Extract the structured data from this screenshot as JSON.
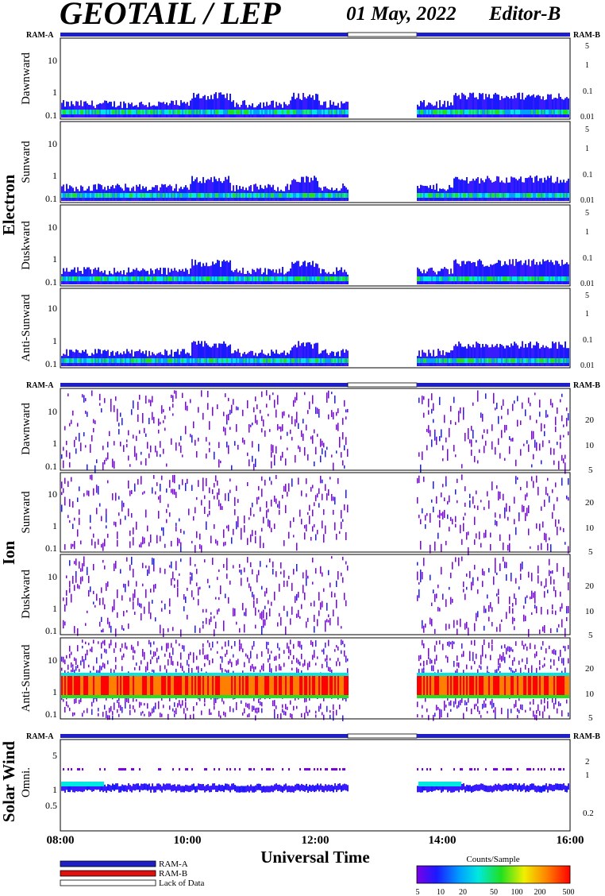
{
  "header": {
    "title": "GEOTAIL / LEP",
    "date": "01 May, 2022",
    "editor": "Editor-B"
  },
  "colors": {
    "ram_a": "#1f1fc8",
    "ram_b": "#e01010",
    "lack": "#ffffff",
    "frame": "#000000"
  },
  "groups": {
    "electron": "Electron",
    "ion": "Ion",
    "solar_wind": "Solar Wind"
  },
  "ram_labels": {
    "left": "RAM-A",
    "right": "RAM-B"
  },
  "xaxis": {
    "label": "Universal Time",
    "ticks": [
      "08:00",
      "10:00",
      "12:00",
      "14:00",
      "16:00"
    ]
  },
  "legend": {
    "items": [
      {
        "label": "RAM-A",
        "color": "#1f1fc8"
      },
      {
        "label": "RAM-B",
        "color": "#e01010"
      },
      {
        "label": "Lack of Data",
        "color": "#ffffff"
      }
    ]
  },
  "colorbar": {
    "title": "Counts/Sample",
    "ticks": [
      "5",
      "10",
      "20",
      "50",
      "100",
      "200",
      "500"
    ]
  },
  "chart_data": {
    "type": "heatmap",
    "x_range": [
      "08:00",
      "16:00"
    ],
    "data_gap": [
      "12:30",
      "13:35"
    ],
    "panels": [
      {
        "group": "Electron",
        "label": "Dawnward",
        "left_ticks": [
          "10",
          "1",
          "0.1"
        ],
        "right_ticks": [
          "5",
          "1",
          "0.1",
          "0.01"
        ],
        "intensity": "low"
      },
      {
        "group": "Electron",
        "label": "Sunward",
        "left_ticks": [
          "10",
          "1",
          "0.1"
        ],
        "right_ticks": [
          "5",
          "1",
          "0.1",
          "0.01"
        ],
        "intensity": "low"
      },
      {
        "group": "Electron",
        "label": "Duskward",
        "left_ticks": [
          "10",
          "1",
          "0.1"
        ],
        "right_ticks": [
          "5",
          "1",
          "0.1",
          "0.01"
        ],
        "intensity": "low"
      },
      {
        "group": "Electron",
        "label": "Anti-Sunward",
        "left_ticks": [
          "10",
          "1",
          "0.1"
        ],
        "right_ticks": [
          "5",
          "1",
          "0.1",
          "0.01"
        ],
        "intensity": "low"
      },
      {
        "group": "Ion",
        "label": "Dawnward",
        "left_ticks": [
          "10",
          "1",
          "0.1"
        ],
        "right_ticks": [
          "20",
          "10",
          "5"
        ],
        "intensity": "sparse"
      },
      {
        "group": "Ion",
        "label": "Sunward",
        "left_ticks": [
          "10",
          "1",
          "0.1"
        ],
        "right_ticks": [
          "20",
          "10",
          "5"
        ],
        "intensity": "sparse"
      },
      {
        "group": "Ion",
        "label": "Duskward",
        "left_ticks": [
          "10",
          "1",
          "0.1"
        ],
        "right_ticks": [
          "20",
          "10",
          "5"
        ],
        "intensity": "sparse"
      },
      {
        "group": "Ion",
        "label": "Anti-Sunward",
        "left_ticks": [
          "10",
          "1",
          "0.1"
        ],
        "right_ticks": [
          "20",
          "10",
          "5"
        ],
        "intensity": "high band near 1"
      },
      {
        "group": "Solar Wind",
        "label": "Omni.",
        "left_ticks": [
          "5",
          "1",
          "0.5"
        ],
        "right_ticks": [
          "2",
          "1",
          "0.2"
        ],
        "intensity": "band near 1"
      }
    ]
  }
}
